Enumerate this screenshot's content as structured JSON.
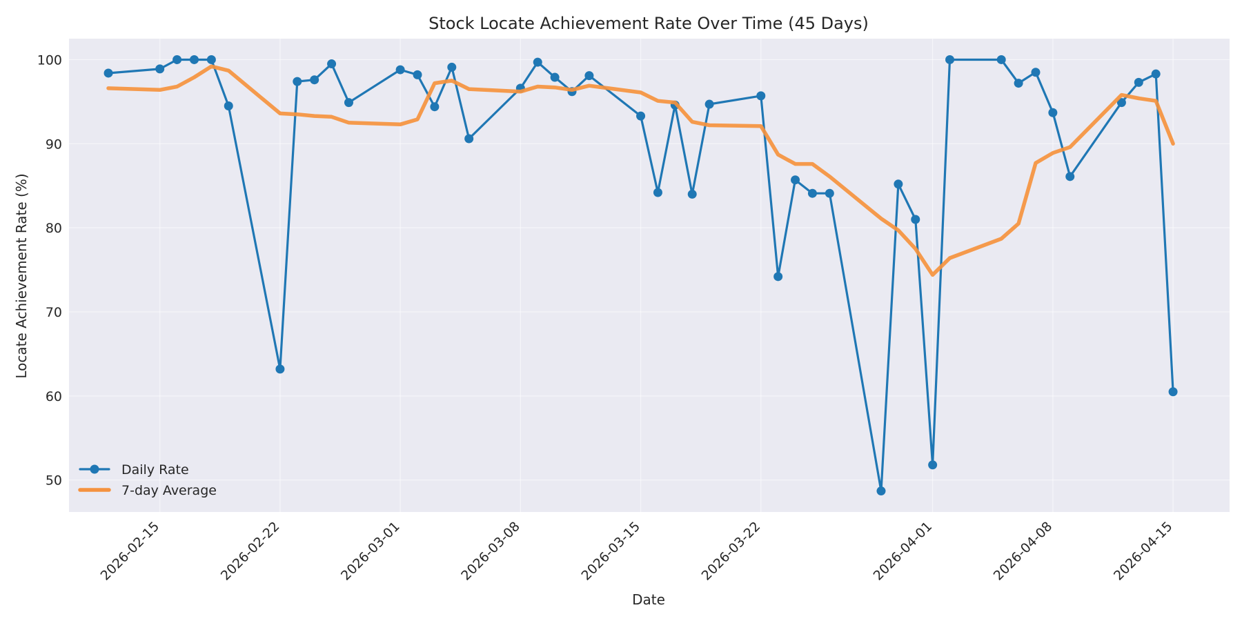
{
  "chart_data": {
    "type": "line",
    "title": "Stock Locate Achievement Rate Over Time (45 Days)",
    "xlabel": "Date",
    "ylabel": "Locate Achievement Rate (%)",
    "x_range": [
      "2026-02-09T17:00",
      "2026-04-18T07:00"
    ],
    "ylim": [
      46.2,
      102.5
    ],
    "y_ticks": [
      50,
      60,
      70,
      80,
      90,
      100
    ],
    "x_ticks": [
      "2026-02-15",
      "2026-02-22",
      "2026-03-01",
      "2026-03-08",
      "2026-03-15",
      "2026-03-22",
      "2026-04-01",
      "2026-04-08",
      "2026-04-15"
    ],
    "grid": true,
    "legend_position": "lower-left",
    "colors": {
      "background": "#eaeaf2",
      "daily": "#1f77b4",
      "avg": "#f5923e"
    },
    "series": [
      {
        "name": "Daily Rate",
        "style": "line-with-markers",
        "x": [
          "2026-02-12",
          "2026-02-15",
          "2026-02-16",
          "2026-02-17",
          "2026-02-18",
          "2026-02-19",
          "2026-02-22",
          "2026-02-23",
          "2026-02-24",
          "2026-02-25",
          "2026-02-26",
          "2026-03-01",
          "2026-03-02",
          "2026-03-03",
          "2026-03-04",
          "2026-03-05",
          "2026-03-08",
          "2026-03-09",
          "2026-03-10",
          "2026-03-11",
          "2026-03-12",
          "2026-03-15",
          "2026-03-16",
          "2026-03-17",
          "2026-03-18",
          "2026-03-19",
          "2026-03-22",
          "2026-03-23",
          "2026-03-24",
          "2026-03-25",
          "2026-03-26",
          "2026-03-29",
          "2026-03-30",
          "2026-03-31",
          "2026-04-01",
          "2026-04-02",
          "2026-04-05",
          "2026-04-06",
          "2026-04-07",
          "2026-04-08",
          "2026-04-09",
          "2026-04-12",
          "2026-04-13",
          "2026-04-14",
          "2026-04-15"
        ],
        "values": [
          98.4,
          98.9,
          100.0,
          100.0,
          100.0,
          94.5,
          63.2,
          97.4,
          97.6,
          99.5,
          94.9,
          98.8,
          98.2,
          94.4,
          99.1,
          90.6,
          96.6,
          99.7,
          97.9,
          96.2,
          98.1,
          93.3,
          84.2,
          94.6,
          84.0,
          94.7,
          95.7,
          74.2,
          85.7,
          84.1,
          84.1,
          48.7,
          85.2,
          81.0,
          51.8,
          100.0,
          100.0,
          97.2,
          98.5,
          93.7,
          86.1,
          94.9,
          97.3,
          98.3,
          60.5
        ]
      },
      {
        "name": "7-day Average",
        "style": "line",
        "x": [
          "2026-02-12",
          "2026-02-15",
          "2026-02-16",
          "2026-02-17",
          "2026-02-18",
          "2026-02-19",
          "2026-02-22",
          "2026-02-23",
          "2026-02-24",
          "2026-02-25",
          "2026-02-26",
          "2026-03-01",
          "2026-03-02",
          "2026-03-03",
          "2026-03-04",
          "2026-03-05",
          "2026-03-08",
          "2026-03-09",
          "2026-03-10",
          "2026-03-11",
          "2026-03-12",
          "2026-03-15",
          "2026-03-16",
          "2026-03-17",
          "2026-03-18",
          "2026-03-19",
          "2026-03-22",
          "2026-03-23",
          "2026-03-24",
          "2026-03-25",
          "2026-03-26",
          "2026-03-29",
          "2026-03-30",
          "2026-03-31",
          "2026-04-01",
          "2026-04-02",
          "2026-04-05",
          "2026-04-06",
          "2026-04-07",
          "2026-04-08",
          "2026-04-09",
          "2026-04-12",
          "2026-04-13",
          "2026-04-14",
          "2026-04-15"
        ],
        "values": [
          96.6,
          96.4,
          96.8,
          97.9,
          99.2,
          98.7,
          93.6,
          93.5,
          93.3,
          93.2,
          92.5,
          92.3,
          92.9,
          97.2,
          97.5,
          96.5,
          96.2,
          96.8,
          96.7,
          96.4,
          96.9,
          96.1,
          95.1,
          94.9,
          92.6,
          92.2,
          92.1,
          88.7,
          87.6,
          87.6,
          86.1,
          81.1,
          79.7,
          77.5,
          74.4,
          76.4,
          78.7,
          80.5,
          87.7,
          88.9,
          89.6,
          95.8,
          95.4,
          95.1,
          90.0
        ]
      }
    ]
  }
}
